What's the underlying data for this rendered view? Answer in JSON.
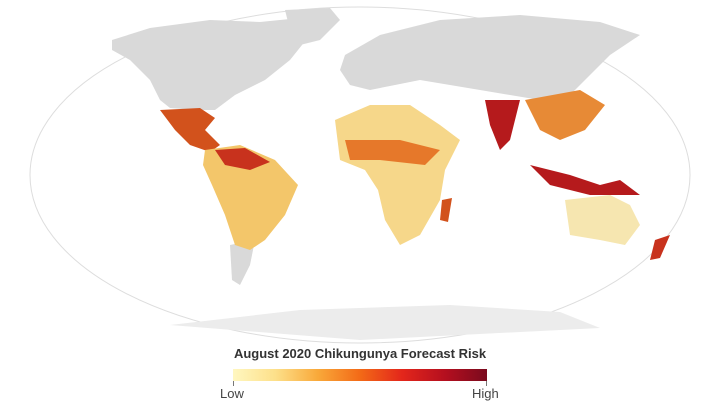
{
  "legend": {
    "title": "August 2020 Chikungunya Forecast Risk",
    "low_label": "Low",
    "high_label": "High"
  }
}
